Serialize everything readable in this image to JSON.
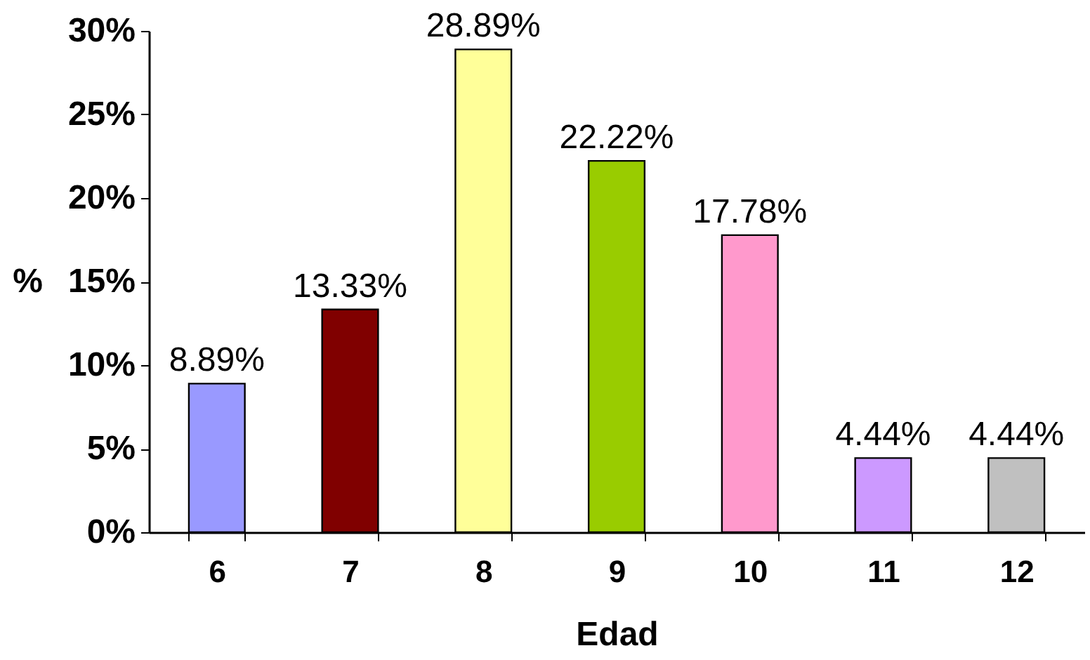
{
  "chart_data": {
    "type": "bar",
    "xlabel": "Edad",
    "ylabel": "%",
    "categories": [
      "6",
      "7",
      "8",
      "9",
      "10",
      "11",
      "12"
    ],
    "values": [
      8.89,
      13.33,
      28.89,
      22.22,
      17.78,
      4.44,
      4.44
    ],
    "colors": [
      "#9999ff",
      "#800000",
      "#ffff99",
      "#99cc00",
      "#ff99cc",
      "#cc99ff",
      "#c0c0c0"
    ],
    "value_labels": [
      "8.89%",
      "13.33%",
      "28.89%",
      "22.22%",
      "17.78%",
      "4.44%",
      "4.44%"
    ],
    "ylim": [
      0,
      30
    ],
    "yticks": [
      {
        "value": 0,
        "label": "0%"
      },
      {
        "value": 5,
        "label": "5%"
      },
      {
        "value": 10,
        "label": "10%"
      },
      {
        "value": 15,
        "label": "15%"
      },
      {
        "value": 20,
        "label": "20%"
      },
      {
        "value": 25,
        "label": "25%"
      },
      {
        "value": 30,
        "label": "30%"
      }
    ]
  }
}
